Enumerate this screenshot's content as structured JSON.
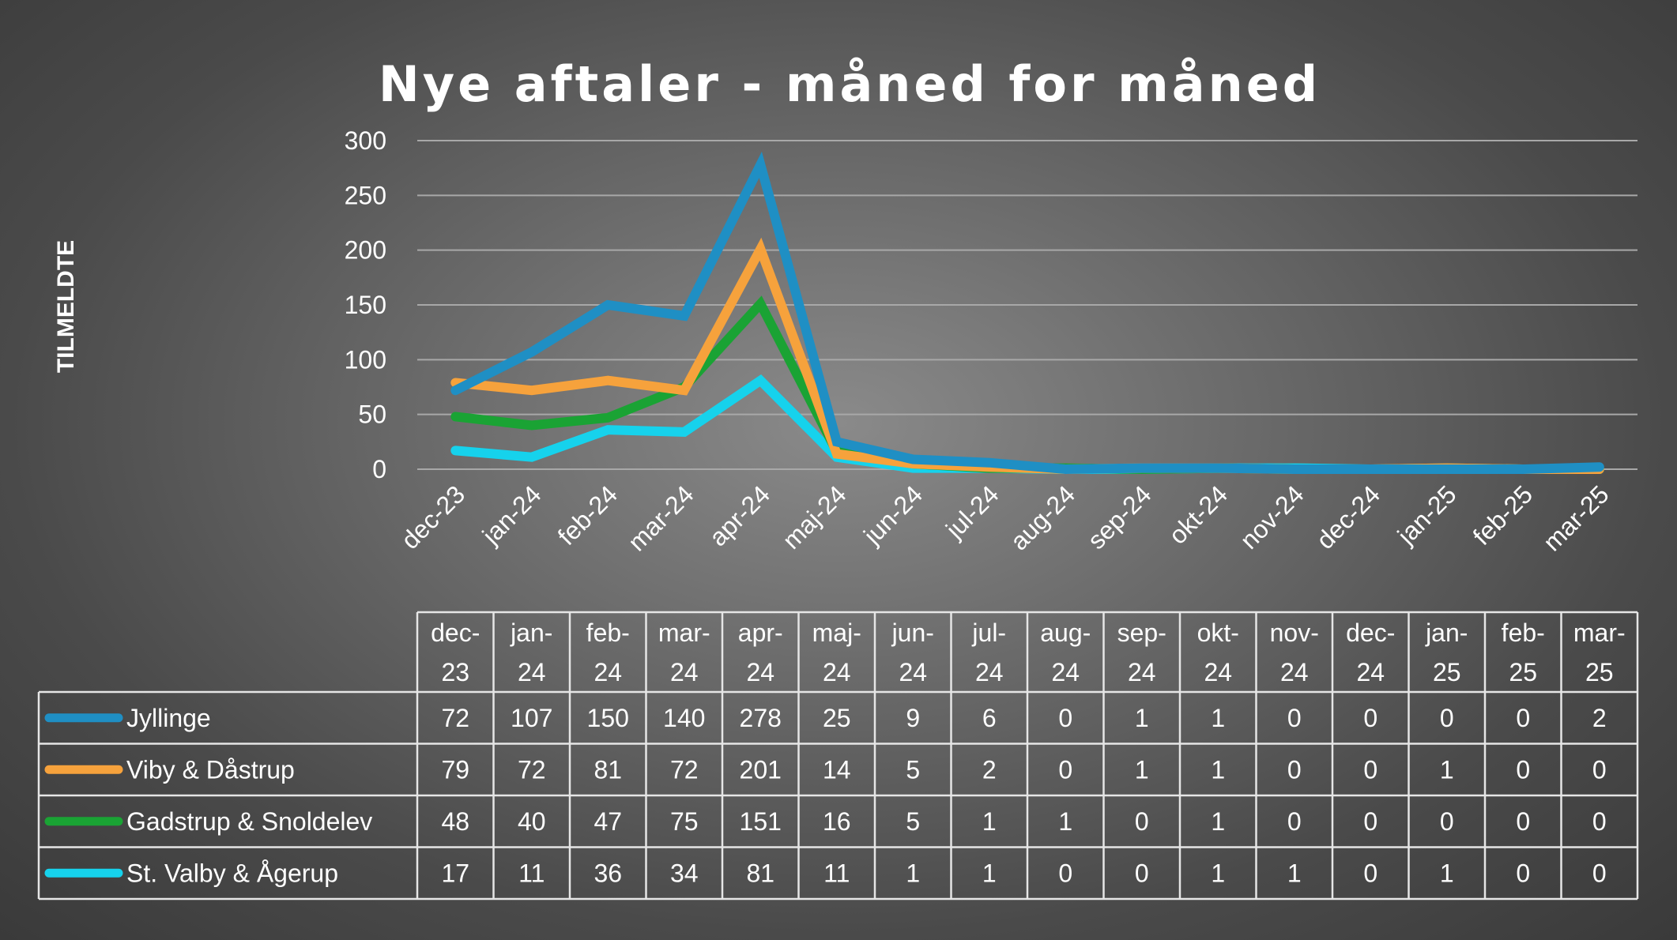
{
  "chart_data": {
    "type": "line",
    "title": "Nye aftaler - måned for måned",
    "ylabel": "TILMELDTE",
    "xlabel": "",
    "ylim": [
      0,
      300
    ],
    "yticks": [
      0,
      50,
      100,
      150,
      200,
      250,
      300
    ],
    "grid": true,
    "categories": [
      "dec-23",
      "jan-24",
      "feb-24",
      "mar-24",
      "apr-24",
      "maj-24",
      "jun-24",
      "jul-24",
      "aug-24",
      "sep-24",
      "okt-24",
      "nov-24",
      "dec-24",
      "jan-25",
      "feb-25",
      "mar-25"
    ],
    "series": [
      {
        "name": "Jyllinge",
        "color": "#1f8fc4",
        "values": [
          72,
          107,
          150,
          140,
          278,
          25,
          9,
          6,
          0,
          1,
          1,
          0,
          0,
          0,
          0,
          2
        ]
      },
      {
        "name": "Viby & Dåstrup",
        "color": "#f6a23c",
        "values": [
          79,
          72,
          81,
          72,
          201,
          14,
          5,
          2,
          0,
          1,
          1,
          0,
          0,
          1,
          0,
          0
        ]
      },
      {
        "name": "Gadstrup & Snoldelev",
        "color": "#1aa334",
        "values": [
          48,
          40,
          47,
          75,
          151,
          16,
          5,
          1,
          1,
          0,
          1,
          0,
          0,
          0,
          0,
          0
        ]
      },
      {
        "name": "St. Valby & Ågerup",
        "color": "#16d2ec",
        "values": [
          17,
          11,
          36,
          34,
          81,
          11,
          1,
          1,
          0,
          0,
          1,
          1,
          0,
          1,
          0,
          0
        ]
      }
    ]
  }
}
